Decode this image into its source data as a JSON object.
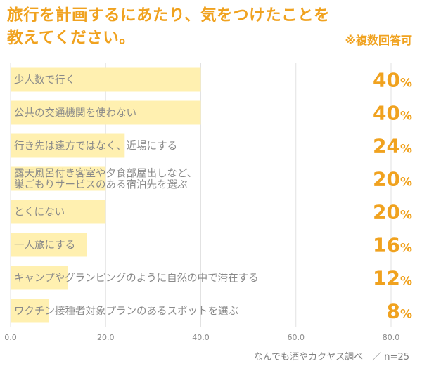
{
  "header": {
    "title_line1": "旅行を計画するにあたり、気をつけたことを",
    "title_line2": "教えてください。",
    "note": "※複数回答可"
  },
  "footer": {
    "source": "なんでも酒やカクヤス調べ　／ n=25"
  },
  "colors": {
    "bar": "#fff0b0",
    "accent": "#f0a21f",
    "label": "#8a8a8a",
    "grid": "#e2e2e2"
  },
  "chart_data": {
    "type": "bar",
    "orientation": "horizontal",
    "categories": [
      [
        "少人数で行く"
      ],
      [
        "公共の交通機関を使わない"
      ],
      [
        "行き先は遠方ではなく、近場にする"
      ],
      [
        "露天風呂付き客室や夕食部屋出しなど、",
        "巣ごもりサービスのある宿泊先を選ぶ"
      ],
      [
        "とくにない"
      ],
      [
        "一人旅にする"
      ],
      [
        "キャンプやグランピングのように自然の中で滞在する"
      ],
      [
        "ワクチン接種者対象プランのあるスポットを選ぶ"
      ]
    ],
    "values": [
      40,
      40,
      24,
      20,
      20,
      16,
      12,
      8
    ],
    "value_labels": [
      "40",
      "40",
      "24",
      "20",
      "20",
      "16",
      "12",
      "8"
    ],
    "unit": "%",
    "xlim": [
      0,
      80
    ],
    "xticks": [
      "0.0",
      "20.0",
      "40.0",
      "60.0",
      "80.0"
    ],
    "grid": true
  }
}
